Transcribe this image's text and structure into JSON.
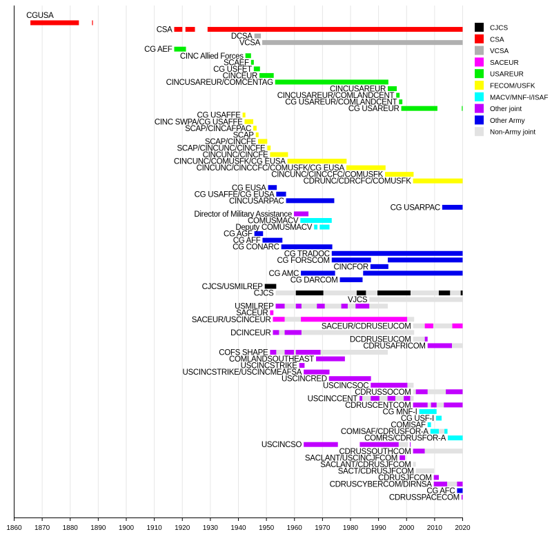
{
  "chart_data": {
    "type": "timeline",
    "title": "",
    "xlabel": "",
    "ylabel": "",
    "xlim": [
      1860,
      2020
    ],
    "xticks": [
      1860,
      1870,
      1880,
      1890,
      1900,
      1910,
      1920,
      1930,
      1940,
      1950,
      1960,
      1970,
      1980,
      1990,
      2000,
      2010,
      2020
    ],
    "grid": "vertical",
    "legend_position": "right",
    "categories": {
      "CJCS": "#000000",
      "CSA": "#ff0000",
      "VCSA": "#b0b0b0",
      "SACEUR": "#ff00ff",
      "USAREUR": "#00ee00",
      "FECOM/USFK": "#ffff00",
      "MACV/MNF-I/ISAF": "#00ffff",
      "Other joint": "#c000ff",
      "Other Army": "#0000ee",
      "Non-Army joint": "#e2e2e2"
    },
    "legend": [
      "CJCS",
      "CSA",
      "VCSA",
      "SACEUR",
      "USAREUR",
      "FECOM/USFK",
      "MACV/MNF-I/ISAF",
      "Other joint",
      "Other Army",
      "Non-Army joint"
    ],
    "rows": [
      {
        "label": "CGUSA",
        "label_above": true,
        "bars": [
          [
            "CSA",
            1865.8,
            1883.1
          ],
          [
            "CSA",
            1887.8,
            1888.1
          ]
        ]
      },
      {
        "label": "CSA",
        "bars": [
          [
            "CSA",
            1917.1,
            1920.0
          ],
          [
            "CSA",
            1921.1,
            1924.5
          ],
          [
            "CSA",
            1929.0,
            2020
          ]
        ]
      },
      {
        "label": "DCSA",
        "bars": [
          [
            "VCSA",
            1945.7,
            1948.0
          ]
        ]
      },
      {
        "label": "VCSA",
        "bars": [
          [
            "VCSA",
            1948.5,
            2020
          ]
        ]
      },
      {
        "label": "CG AEF",
        "bars": [
          [
            "USAREUR",
            1917.1,
            1921.3
          ]
        ]
      },
      {
        "label": "CINC Allied Forces",
        "bars": [
          [
            "USAREUR",
            1942.5,
            1944.5
          ]
        ]
      },
      {
        "label": "SCAEF",
        "bars": [
          [
            "USAREUR",
            1944.5,
            1945.5
          ]
        ]
      },
      {
        "label": "CG USFET",
        "bars": [
          [
            "USAREUR",
            1945.5,
            1947.7
          ]
        ]
      },
      {
        "label": "CINCEUR",
        "bars": [
          [
            "USAREUR",
            1947.5,
            1952.6
          ]
        ]
      },
      {
        "label": "CINCUSAREUR/COMCENTAG",
        "bars": [
          [
            "USAREUR",
            1953.1,
            1993.5
          ]
        ]
      },
      {
        "label": "CINCUSAREUR",
        "bars": [
          [
            "USAREUR",
            1993.3,
            1996.5
          ]
        ]
      },
      {
        "label": "CINCUSAREUR/COMLANDCENT",
        "bars": [
          [
            "USAREUR",
            1996.3,
            1997.5
          ]
        ]
      },
      {
        "label": "CG USAREUR/COMLANDCENT",
        "bars": [
          [
            "USAREUR",
            1997.3,
            1998.5
          ]
        ]
      },
      {
        "label": "CG USAREUR",
        "bars": [
          [
            "USAREUR",
            1998.1,
            2011.0
          ],
          [
            "USAREUR",
            2019.7,
            2020
          ]
        ]
      },
      {
        "label": "CG USAFFE",
        "bars": [
          [
            "FECOM/USFK",
            1941.5,
            1942.5
          ]
        ]
      },
      {
        "label": "CINC SWPA/CG USAFFE",
        "bars": [
          [
            "FECOM/USFK",
            1942.2,
            1945.3
          ]
        ]
      },
      {
        "label": "SCAP/CINCAFPAC",
        "bars": [
          [
            "FECOM/USFK",
            1945.3,
            1946.5
          ]
        ]
      },
      {
        "label": "SCAP",
        "bars": [
          [
            "FECOM/USFK",
            1946.2,
            1947.2
          ]
        ]
      },
      {
        "label": "SCAP/CINCFE",
        "bars": [
          [
            "FECOM/USFK",
            1947.0,
            1950.3
          ]
        ]
      },
      {
        "label": "SCAP/CINCUNC/CINCFE",
        "bars": [
          [
            "FECOM/USFK",
            1950.3,
            1951.5
          ]
        ]
      },
      {
        "label": "CINCUNC/CINCFE",
        "bars": [
          [
            "FECOM/USFK",
            1951.3,
            1957.7
          ]
        ]
      },
      {
        "label": "CINCUNC/COMUSFK/CG EUSA",
        "bars": [
          [
            "FECOM/USFK",
            1957.5,
            1978.6
          ]
        ]
      },
      {
        "label": "CINCUNC/CINCCFC/COMUSFK/CG EUSA",
        "bars": [
          [
            "FECOM/USFK",
            1978.5,
            1992.5
          ]
        ]
      },
      {
        "label": "CINCUNC/CINCCFC/COMUSFK",
        "bars": [
          [
            "FECOM/USFK",
            1992.3,
            2002.5
          ]
        ]
      },
      {
        "label": "CDRUNC/CDRCFC/COMUSFK",
        "bars": [
          [
            "FECOM/USFK",
            2002.3,
            2020
          ]
        ]
      },
      {
        "label": "CG EUSA",
        "bars": [
          [
            "Other Army",
            1950.6,
            1953.7
          ]
        ]
      },
      {
        "label": "CG USAFFE/CG EUSA",
        "bars": [
          [
            "Other Army",
            1953.5,
            1957.0
          ]
        ]
      },
      {
        "label": "CINCUSARPAC",
        "bars": [
          [
            "Other Army",
            1957.0,
            1974.2
          ]
        ]
      },
      {
        "label": "CG USARPAC",
        "bars": [
          [
            "Other Army",
            2012.7,
            2020
          ]
        ]
      },
      {
        "label": "Director of Military Assistance",
        "bars": [
          [
            "Other joint",
            1959.8,
            1965.0
          ]
        ]
      },
      {
        "label": "COMUSMACV",
        "bars": [
          [
            "MACV/MNF-I/ISAF",
            1962.1,
            1973.3
          ]
        ]
      },
      {
        "label": "Deputy COMUSMACV",
        "bars": [
          [
            "MACV/MNF-I/ISAF",
            1967.0,
            1968.2
          ],
          [
            "MACV/MNF-I/ISAF",
            1969.0,
            1972.5
          ]
        ]
      },
      {
        "label": "CG AGF",
        "bars": [
          [
            "Other Army",
            1945.7,
            1948.8
          ]
        ]
      },
      {
        "label": "CG AFF",
        "bars": [
          [
            "Other Army",
            1948.6,
            1955.7
          ]
        ]
      },
      {
        "label": "CG CONARC",
        "bars": [
          [
            "Other Army",
            1955.3,
            1973.5
          ]
        ]
      },
      {
        "label": "CG TRADOC",
        "bars": [
          [
            "Other Army",
            1973.3,
            2020
          ]
        ]
      },
      {
        "label": "CG FORSCOM",
        "bars": [
          [
            "Other Army",
            1973.3,
            1987.3
          ],
          [
            "Other Army",
            1993.3,
            2020
          ]
        ]
      },
      {
        "label": "CINCFOR",
        "bars": [
          [
            "Other Army",
            1987.1,
            1993.5
          ]
        ]
      },
      {
        "label": "CG AMC",
        "bars": [
          [
            "Other Army",
            1962.3,
            1974.5
          ],
          [
            "Other Army",
            1984.5,
            2020
          ]
        ]
      },
      {
        "label": "CG DARCOM",
        "bars": [
          [
            "Other Army",
            1976.2,
            1984.3
          ]
        ]
      },
      {
        "label": "CJCS/USMILREP",
        "bars": [
          [
            "CJCS",
            1949.4,
            1953.5
          ]
        ]
      },
      {
        "label": "CJCS",
        "bars": [
          [
            "Non-Army joint",
            1953.3,
            2020
          ],
          [
            "CJCS",
            1960.5,
            1970.3
          ],
          [
            "CJCS",
            1982.2,
            1985.5
          ],
          [
            "CJCS",
            1989.6,
            2001.4
          ],
          [
            "CJCS",
            2011.5,
            2015.5
          ],
          [
            "CJCS",
            2019.3,
            2020
          ]
        ]
      },
      {
        "label": "VJCS",
        "bars": [
          [
            "Non-Army joint",
            1986.7,
            2020
          ]
        ]
      },
      {
        "label": "USMILREP",
        "bars": [
          [
            "Non-Army joint",
            1953.3,
            1993.3
          ],
          [
            "Other joint",
            1953.3,
            1956.5
          ],
          [
            "Other joint",
            1960.5,
            1962.5
          ],
          [
            "Other joint",
            1968.0,
            1970.8
          ],
          [
            "Other joint",
            1976.7,
            1979.0
          ],
          [
            "Other joint",
            1981.8,
            1986.7
          ]
        ]
      },
      {
        "label": "SACEUR",
        "bars": [
          [
            "SACEUR",
            1951.3,
            1952.5
          ]
        ]
      },
      {
        "label": "SACEUR/USCINCEUR",
        "bars": [
          [
            "Non-Army joint",
            1952.3,
            2002.7
          ],
          [
            "SACEUR",
            1952.3,
            1956.5
          ],
          [
            "SACEUR",
            1962.3,
            2000.2
          ]
        ]
      },
      {
        "label": "SACEUR/CDRUSEUCOM",
        "bars": [
          [
            "Non-Army joint",
            2002.3,
            2020
          ],
          [
            "SACEUR",
            2006.5,
            2009.5
          ],
          [
            "SACEUR",
            2016.3,
            2020
          ]
        ]
      },
      {
        "label": "DCINCEUR",
        "bars": [
          [
            "Non-Army joint",
            1952.3,
            2002.7
          ],
          [
            "Other joint",
            1952.3,
            1954.5
          ],
          [
            "Other joint",
            1956.5,
            1962.5
          ]
        ]
      },
      {
        "label": "DCDRUSEUCOM",
        "bars": [
          [
            "Non-Army joint",
            2002.3,
            2006.5
          ],
          [
            "Other joint",
            2006.5,
            2007.5
          ]
        ]
      },
      {
        "label": "CDRUSAFRICOM",
        "bars": [
          [
            "Other joint",
            2007.5,
            2016.2
          ],
          [
            "Non-Army joint",
            2016.2,
            2020
          ]
        ]
      },
      {
        "label": "COFS SHAPE",
        "bars": [
          [
            "Non-Army joint",
            1951.3,
            1993.3
          ],
          [
            "Other joint",
            1951.3,
            1953.5
          ],
          [
            "Other joint",
            1956.5,
            1959.8
          ],
          [
            "Other joint",
            1960.5,
            1969.3
          ]
        ]
      },
      {
        "label": "COMLANDSOUTHEAST",
        "bars": [
          [
            "Other joint",
            1967.7,
            1978.0
          ]
        ]
      },
      {
        "label": "USCINCSTRIKE",
        "bars": [
          [
            "Other joint",
            1961.7,
            1963.6
          ]
        ]
      },
      {
        "label": "USCINCSTRIKE/USCINCMEAFSA",
        "bars": [
          [
            "Other joint",
            1963.3,
            1972.5
          ]
        ]
      },
      {
        "label": "USCINCRED",
        "bars": [
          [
            "Other joint",
            1972.3,
            1987.3
          ]
        ]
      },
      {
        "label": "USCINCSOC",
        "bars": [
          [
            "Other joint",
            1987.2,
            2000.3
          ],
          [
            "Non-Army joint",
            2000.3,
            2002.5
          ]
        ]
      },
      {
        "label": "CDRUSSOCOM",
        "bars": [
          [
            "Non-Army joint",
            2002.3,
            2020
          ],
          [
            "Other joint",
            2003.3,
            2007.5
          ],
          [
            "Other joint",
            2014.0,
            2020
          ]
        ]
      },
      {
        "label": "USCINCCENT",
        "bars": [
          [
            "Non-Army joint",
            1983.2,
            2002.5
          ],
          [
            "Other joint",
            1983.2,
            1984.2
          ],
          [
            "Other joint",
            1987.2,
            1990.3
          ],
          [
            "Other joint",
            1993.2,
            1996.0
          ],
          [
            "Other joint",
            1999.0,
            2001.3
          ]
        ]
      },
      {
        "label": "CDRUSCENTCOM",
        "bars": [
          [
            "Non-Army joint",
            2002.3,
            2020
          ],
          [
            "Other joint",
            2002.3,
            2007.5
          ],
          [
            "Other joint",
            2008.7,
            2010.7
          ],
          [
            "Other joint",
            2013.3,
            2020
          ]
        ]
      },
      {
        "label": "CG MNF-I",
        "bars": [
          [
            "MACV/MNF-I/ISAF",
            2004.5,
            2010.7
          ]
        ]
      },
      {
        "label": "CG USF-I",
        "bars": [
          [
            "MACV/MNF-I/ISAF",
            2010.5,
            2012.5
          ]
        ]
      },
      {
        "label": "COMISAF",
        "bars": [
          [
            "MACV/MNF-I/ISAF",
            2007.5,
            2008.7
          ]
        ]
      },
      {
        "label": "COMISAF/CDRUSFOR-A",
        "bars": [
          [
            "Non-Army joint",
            2008.5,
            2014.5
          ],
          [
            "MACV/MNF-I/ISAF",
            2008.5,
            2011.5
          ],
          [
            "MACV/MNF-I/ISAF",
            2013.5,
            2014.6
          ]
        ]
      },
      {
        "label": "COMRS/CDRUSFOR-A",
        "bars": [
          [
            "MACV/MNF-I/ISAF",
            2014.7,
            2020
          ]
        ]
      },
      {
        "label": "USCINCSO",
        "bars": [
          [
            "Other joint",
            1963.3,
            1975.5
          ],
          [
            "Other joint",
            1983.3,
            1997.2
          ],
          [
            "Non-Army joint",
            1997.2,
            2000.5
          ],
          [
            "Other joint",
            2001.2,
            2001.4
          ]
        ]
      },
      {
        "label": "CDRUSSOUTHCOM",
        "bars": [
          [
            "Other joint",
            2002.3,
            2006.5
          ],
          [
            "Non-Army joint",
            2006.5,
            2020
          ]
        ]
      },
      {
        "label": "SACLANT/USCINCJFCOM",
        "bars": [
          [
            "Other joint",
            1997.5,
            1999.5
          ]
        ]
      },
      {
        "label": "SACLANT/CDRUSJFCOM",
        "bars": [
          [
            "Non-Army joint",
            2002.3,
            2003.3
          ]
        ]
      },
      {
        "label": "SACT/CDRUSJFCOM",
        "bars": [
          [
            "Non-Army joint",
            2003.3,
            2009.8
          ]
        ]
      },
      {
        "label": "CDRUSJFCOM",
        "bars": [
          [
            "Other joint",
            2009.7,
            2011.5
          ]
        ]
      },
      {
        "label": "CDRUSCYBERCOM/DIRNSA",
        "bars": [
          [
            "Other joint",
            2009.7,
            2014.5
          ],
          [
            "Non-Army joint",
            2014.5,
            2018.0
          ],
          [
            "Other joint",
            2018.0,
            2020
          ]
        ]
      },
      {
        "label": "CG AFC",
        "bars": [
          [
            "Other Army",
            2018.0,
            2020
          ]
        ]
      },
      {
        "label": "CDRUSSPACECOM",
        "bars": [
          [
            "Other joint",
            2019.6,
            2020
          ]
        ]
      }
    ]
  }
}
